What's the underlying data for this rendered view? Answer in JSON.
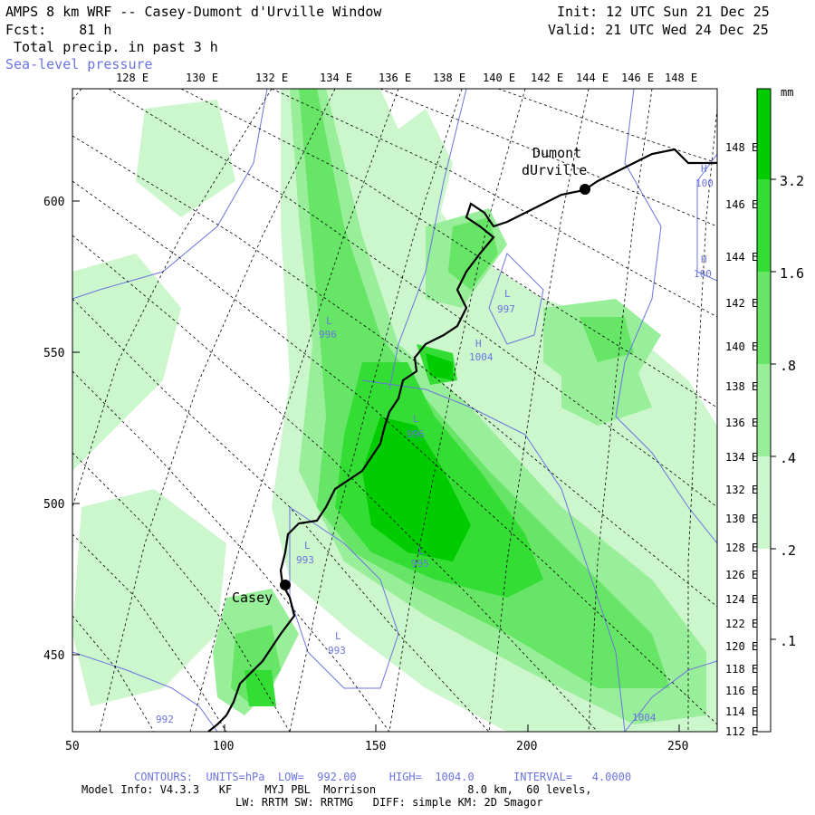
{
  "header": {
    "line1_left": "AMPS 8 km WRF -- Casey-Dumont d'Urville Window",
    "line2_left": "Fcst:    81 h",
    "line3_left": " Total precip. in past 3 h",
    "line4_left": "Sea-level pressure",
    "line1_right": "Init: 12 UTC Sun 21 Dec 25",
    "line2_right": "Valid: 21 UTC Wed 24 Dec 25"
  },
  "axes": {
    "x_ticks": [
      "50",
      "100",
      "150",
      "200",
      "250"
    ],
    "y_ticks": [
      "450",
      "500",
      "550",
      "600"
    ],
    "top_lon_labels": [
      "128 E",
      "130 E",
      "132 E",
      "134 E",
      "136 E",
      "138 E",
      "140 E",
      "142 E",
      "144 E",
      "146 E",
      "148 E"
    ],
    "right_lat_labels": [
      "148 E",
      "146 E",
      "144 E",
      "142 E",
      "140 E",
      "138 E",
      "136 E",
      "134 E",
      "132 E",
      "130 E",
      "128 E",
      "126 E",
      "124 E",
      "122 E",
      "120 E",
      "118 E",
      "116 E",
      "114 E",
      "112 E"
    ]
  },
  "places": {
    "dumont_line1": "Dumont",
    "dumont_line2": "dUrville",
    "casey": "Casey"
  },
  "pressure_labels": [
    {
      "type": "L",
      "value": "996"
    },
    {
      "type": "L",
      "value": "997"
    },
    {
      "type": "H",
      "value": "1004"
    },
    {
      "type": "L",
      "value": "996"
    },
    {
      "type": "L",
      "value": "993"
    },
    {
      "type": "L",
      "value": "995"
    },
    {
      "type": "L",
      "value": "993"
    },
    {
      "type": "H",
      "value": "100"
    },
    {
      "type": "H",
      "value": "100"
    }
  ],
  "contour_values": [
    "992",
    "1004"
  ],
  "colorbar": {
    "unit": "mm",
    "levels": [
      "3.2",
      "1.6",
      ".8",
      ".4",
      ".2",
      ".1"
    ],
    "colors": [
      "#00cc00",
      "#33dd33",
      "#66e566",
      "#99ee99",
      "#ccf6cc",
      "#ffffff"
    ]
  },
  "footer": {
    "contours": "CONTOURS:  UNITS=hPa  LOW=  992.00     HIGH=  1004.0      INTERVAL=   4.0000",
    "model_info": "Model Info: V4.3.3   KF     MYJ PBL  Morrison              8.0 km,  60 levels,",
    "physics": "LW: RRTM SW: RRTMG   DIFF: simple KM: 2D Smagor"
  }
}
